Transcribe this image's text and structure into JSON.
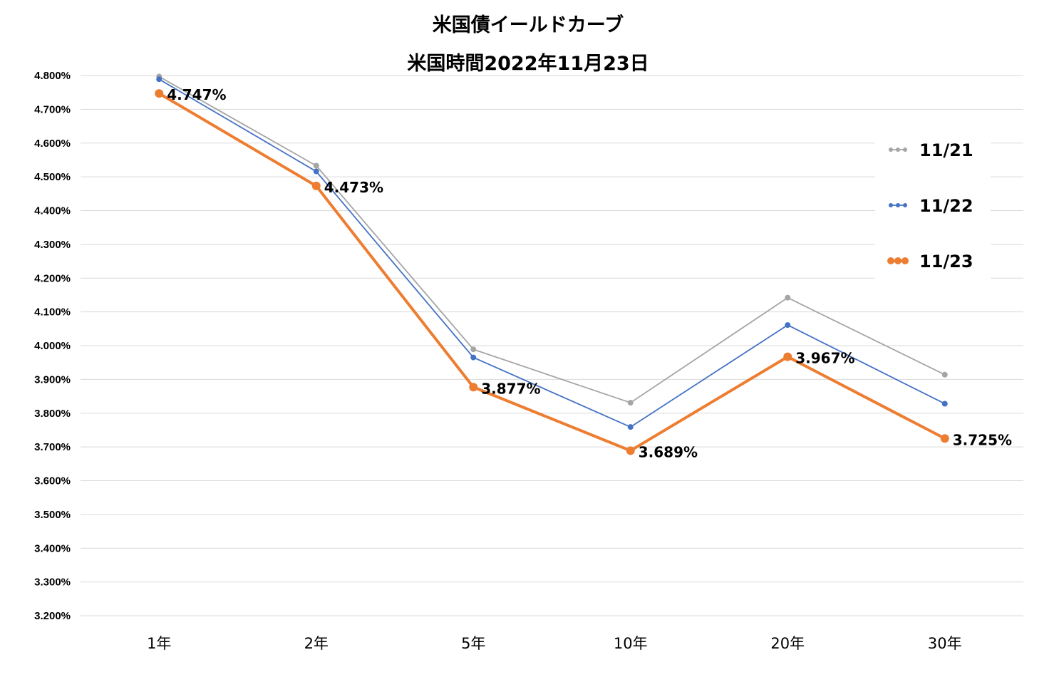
{
  "chart_data": {
    "type": "line",
    "title": "米国債イールドカーブ",
    "subtitle": "米国時間2022年11月23日",
    "categories": [
      "1年",
      "2年",
      "5年",
      "10年",
      "20年",
      "30年"
    ],
    "y_tick_labels": [
      "4.800%",
      "4.700%",
      "4.600%",
      "4.500%",
      "4.400%",
      "4.300%",
      "4.200%",
      "4.100%",
      "4.000%",
      "3.900%",
      "3.800%",
      "3.700%",
      "3.600%",
      "3.500%",
      "3.400%",
      "3.300%",
      "3.200%"
    ],
    "ylim": [
      3.2,
      4.8
    ],
    "ytick_step": 0.1,
    "grid": true,
    "legend_position": "right",
    "series": [
      {
        "name": "11/21",
        "color": "#a5a5a5",
        "values": [
          4.797,
          4.533,
          3.989,
          3.831,
          4.142,
          3.914
        ],
        "data_labels": null
      },
      {
        "name": "11/22",
        "color": "#4472c4",
        "values": [
          4.789,
          4.516,
          3.965,
          3.759,
          4.061,
          3.828
        ],
        "data_labels": null
      },
      {
        "name": "11/23",
        "color": "#ed7d31",
        "values": [
          4.747,
          4.473,
          3.877,
          3.689,
          3.967,
          3.725
        ],
        "data_labels": [
          "4.747%",
          "4.473%",
          "3.877%",
          "3.689%",
          "3.967%",
          "3.725%"
        ]
      }
    ]
  }
}
